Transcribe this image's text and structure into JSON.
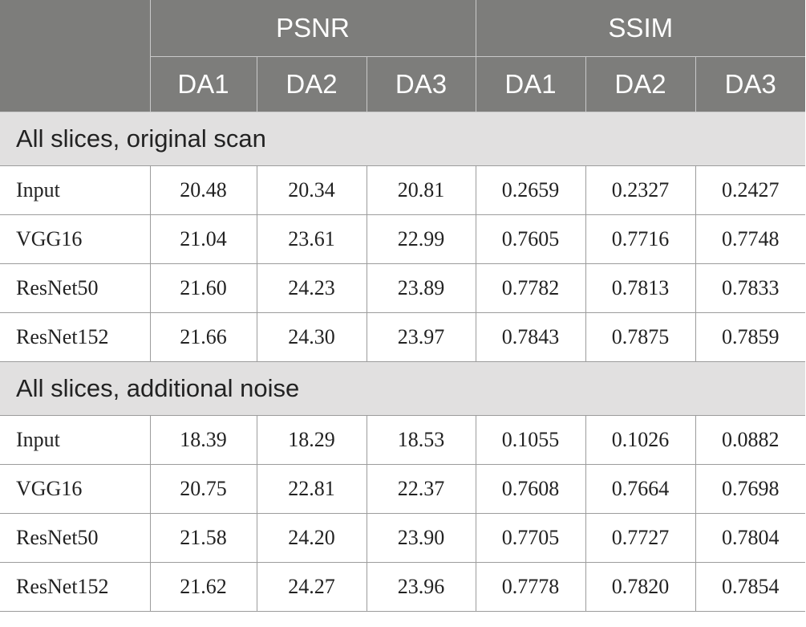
{
  "table": {
    "metric_headers": [
      "PSNR",
      "SSIM"
    ],
    "sub_headers": [
      "DA1",
      "DA2",
      "DA3",
      "DA1",
      "DA2",
      "DA3"
    ],
    "sections": [
      {
        "title": "All slices, original scan",
        "rows": [
          {
            "label": "Input",
            "values": [
              "20.48",
              "20.34",
              "20.81",
              "0.2659",
              "0.2327",
              "0.2427"
            ]
          },
          {
            "label": "VGG16",
            "values": [
              "21.04",
              "23.61",
              "22.99",
              "0.7605",
              "0.7716",
              "0.7748"
            ]
          },
          {
            "label": "ResNet50",
            "values": [
              "21.60",
              "24.23",
              "23.89",
              "0.7782",
              "0.7813",
              "0.7833"
            ]
          },
          {
            "label": "ResNet152",
            "values": [
              "21.66",
              "24.30",
              "23.97",
              "0.7843",
              "0.7875",
              "0.7859"
            ]
          }
        ]
      },
      {
        "title": "All slices, additional noise",
        "rows": [
          {
            "label": "Input",
            "values": [
              "18.39",
              "18.29",
              "18.53",
              "0.1055",
              "0.1026",
              "0.0882"
            ]
          },
          {
            "label": "VGG16",
            "values": [
              "20.75",
              "22.81",
              "22.37",
              "0.7608",
              "0.7664",
              "0.7698"
            ]
          },
          {
            "label": "ResNet50",
            "values": [
              "21.58",
              "24.20",
              "23.90",
              "0.7705",
              "0.7727",
              "0.7804"
            ]
          },
          {
            "label": "ResNet152",
            "values": [
              "21.62",
              "24.27",
              "23.96",
              "0.7778",
              "0.7820",
              "0.7854"
            ]
          }
        ]
      }
    ]
  }
}
